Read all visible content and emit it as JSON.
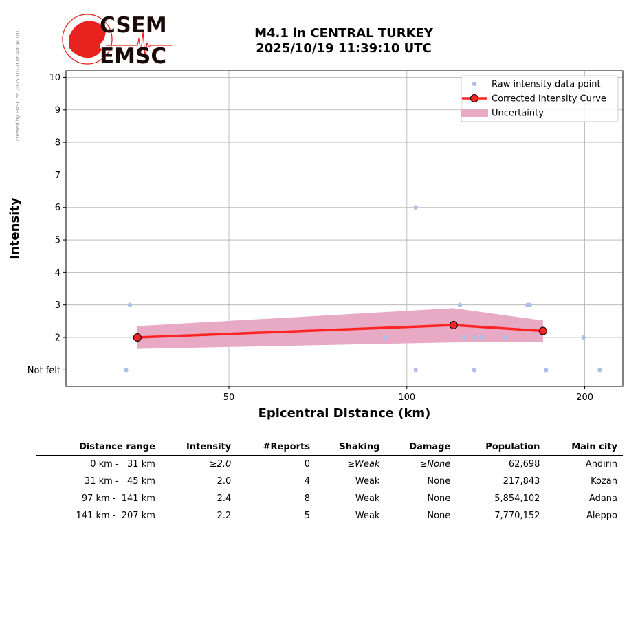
{
  "credit_text": "created by EMSC on 2025-10-20 06:40:58 UTC",
  "logo": {
    "line1": "CSEM",
    "line2": "EMSC",
    "red": "#e8221f",
    "dark": "#1a0a0a"
  },
  "title": {
    "line1": "M4.1 in CENTRAL TURKEY",
    "line2": "2025/10/19 11:39:10 UTC"
  },
  "chart_data": {
    "type": "line",
    "xlabel": "Epicentral Distance (km)",
    "ylabel": "Intensity",
    "xscale": "log",
    "xlim": [
      26.5,
      232
    ],
    "ylim": [
      0.5,
      10.2
    ],
    "x_ticks": [
      50,
      100,
      200
    ],
    "y_ticks": [
      {
        "value": 1,
        "label": "Not felt"
      },
      {
        "value": 2,
        "label": "2"
      },
      {
        "value": 3,
        "label": "3"
      },
      {
        "value": 4,
        "label": "4"
      },
      {
        "value": 5,
        "label": "5"
      },
      {
        "value": 6,
        "label": "6"
      },
      {
        "value": 7,
        "label": "7"
      },
      {
        "value": 8,
        "label": "8"
      },
      {
        "value": 9,
        "label": "9"
      },
      {
        "value": 10,
        "label": "10"
      }
    ],
    "grid": true,
    "legend_position": "top-right",
    "colors": {
      "raw": "#aebfe8",
      "curve": "#ff2424",
      "uncertainty": "#e8a9c4"
    },
    "series": [
      {
        "name": "Raw intensity data point",
        "style": "points",
        "points": [
          {
            "x": 34.0,
            "y": 3
          },
          {
            "x": 33.5,
            "y": 1
          },
          {
            "x": 92.0,
            "y": 2
          },
          {
            "x": 103.5,
            "y": 6
          },
          {
            "x": 103.5,
            "y": 1
          },
          {
            "x": 123.0,
            "y": 3
          },
          {
            "x": 125.0,
            "y": 2
          },
          {
            "x": 130.0,
            "y": 1
          },
          {
            "x": 131.0,
            "y": 2
          },
          {
            "x": 134.0,
            "y": 2
          },
          {
            "x": 147.0,
            "y": 2
          },
          {
            "x": 160.0,
            "y": 3
          },
          {
            "x": 161.5,
            "y": 3
          },
          {
            "x": 172.0,
            "y": 1
          },
          {
            "x": 199.0,
            "y": 2
          },
          {
            "x": 212.0,
            "y": 1
          }
        ]
      },
      {
        "name": "Corrected Intensity Curve",
        "style": "line-markers",
        "points": [
          {
            "x": 35.0,
            "y": 2.0
          },
          {
            "x": 120.0,
            "y": 2.38
          },
          {
            "x": 170.0,
            "y": 2.2
          }
        ]
      },
      {
        "name": "Uncertainty",
        "style": "band",
        "points": [
          {
            "x": 35.0,
            "lower": 1.65,
            "upper": 2.35
          },
          {
            "x": 120.0,
            "lower": 1.85,
            "upper": 2.9
          },
          {
            "x": 170.0,
            "lower": 1.87,
            "upper": 2.52
          }
        ]
      }
    ]
  },
  "table": {
    "headers": [
      "Distance range",
      "Intensity",
      "#Reports",
      "Shaking",
      "Damage",
      "Population",
      "Main city"
    ],
    "rows": [
      {
        "range": "0 km -   31 km",
        "intensity": "≥2.0",
        "reports": "0",
        "shaking": "≥Weak",
        "damage": "≥None",
        "population": "62,698",
        "city": "Andırın",
        "italic": true
      },
      {
        "range": "31 km -   45 km",
        "intensity": "2.0",
        "reports": "4",
        "shaking": "Weak",
        "damage": "None",
        "population": "217,843",
        "city": "Kozan",
        "italic": false
      },
      {
        "range": "97 km -  141 km",
        "intensity": "2.4",
        "reports": "8",
        "shaking": "Weak",
        "damage": "None",
        "population": "5,854,102",
        "city": "Adana",
        "italic": false
      },
      {
        "range": "141 km -  207 km",
        "intensity": "2.2",
        "reports": "5",
        "shaking": "Weak",
        "damage": "None",
        "population": "7,770,152",
        "city": "Aleppo",
        "italic": false
      }
    ]
  }
}
